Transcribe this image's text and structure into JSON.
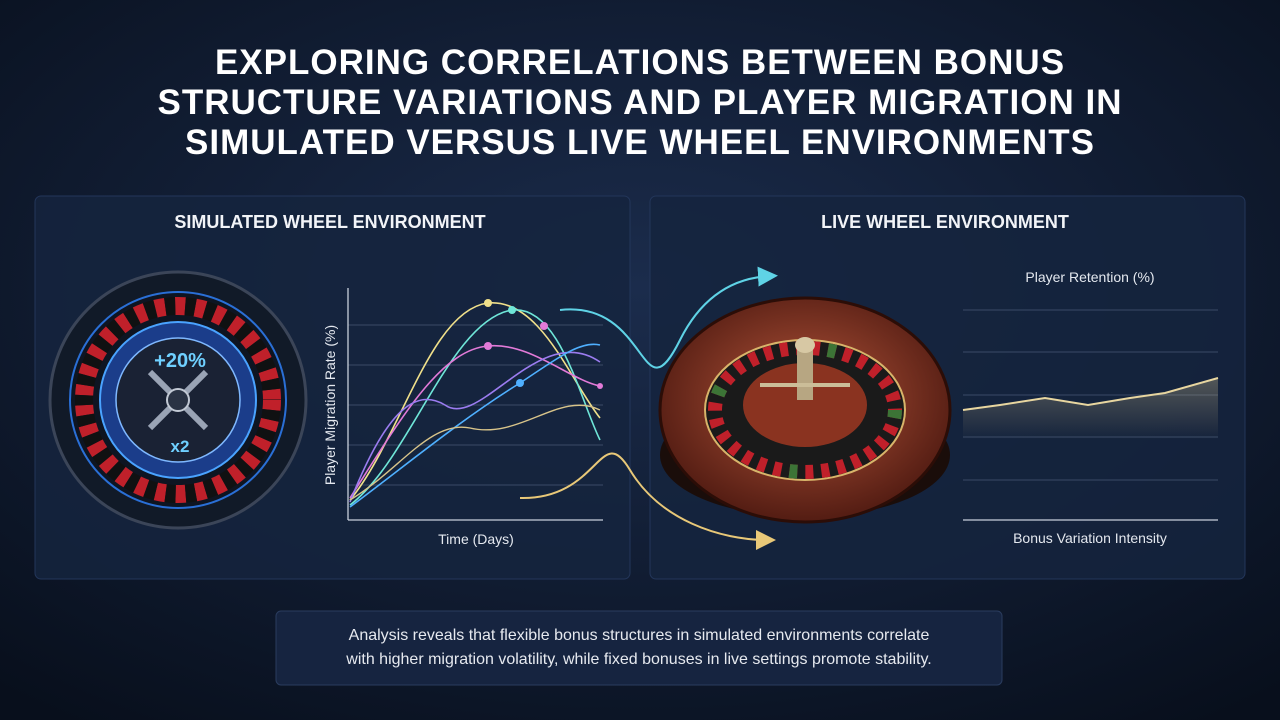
{
  "header": {
    "title_lines": [
      "EXPLORING CORRELATIONS BETWEEN BONUS",
      "STRUCTURE VARIATIONS AND PLAYER MIGRATION IN",
      "SIMULATED VERSUS LIVE WHEEL ENVIRONMENTS"
    ]
  },
  "left_panel": {
    "title": "SIMULATED WHEEL ENVIRONMENT",
    "wheel_labels": [
      "+20%",
      "x2"
    ],
    "y_axis_label": "Player Migration Rate (%)",
    "x_axis_label": "Time (Days)"
  },
  "right_panel": {
    "title": "LIVE WHEEL ENVIRONMENT",
    "chart_title": "Player Retention (%)",
    "x_axis_label": "Bonus Variation Intensity"
  },
  "caption": {
    "lines": [
      "Analysis reveals that flexible bonus structures in simulated environments correlate",
      "with higher migration volatility, while fixed bonuses in live settings promote stability."
    ]
  }
}
